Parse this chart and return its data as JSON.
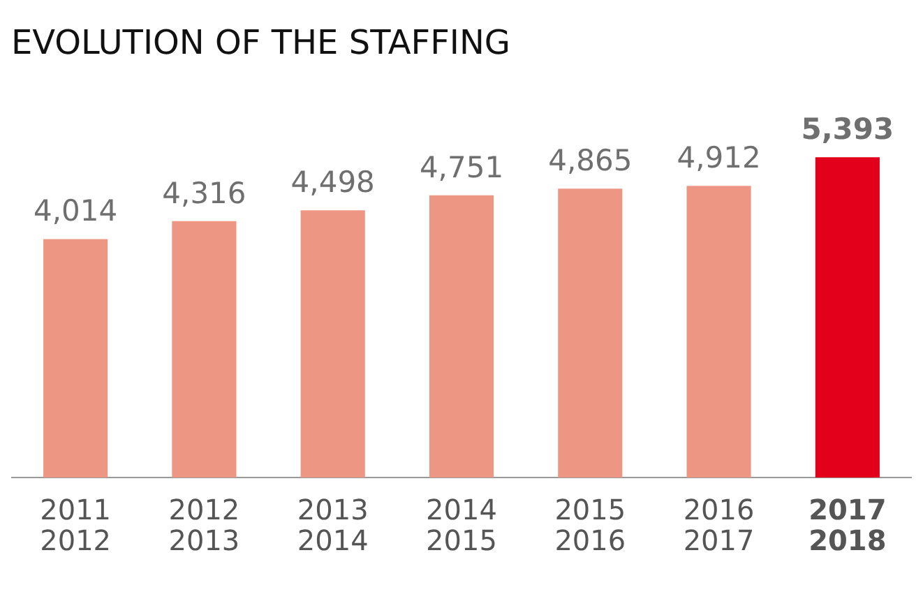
{
  "chart_data": {
    "type": "bar",
    "title": "EVOLUTION OF THE STAFFING",
    "categories": [
      "2011\n2012",
      "2012\n2013",
      "2013\n2014",
      "2014\n2015",
      "2015\n2016",
      "2016\n2017",
      "2017\n2018"
    ],
    "values": [
      4014,
      4316,
      4498,
      4751,
      4865,
      4912,
      5393
    ],
    "colors": [
      "#ec9683",
      "#ec9683",
      "#ec9683",
      "#ec9683",
      "#ec9683",
      "#ec9683",
      "#e2001a"
    ],
    "value_labels": [
      "4,014",
      "4,316",
      "4,498",
      "4,751",
      "4,865",
      "4,912",
      "5,393"
    ],
    "grid": false,
    "legend": false,
    "tick_labels": "x"
  }
}
